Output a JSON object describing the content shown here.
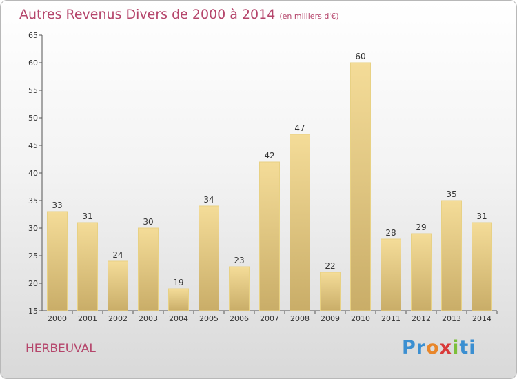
{
  "header": {
    "title": "Autres Revenus Divers de 2000 à 2014",
    "unit": "(en milliers d'€)"
  },
  "footer": {
    "commune": "HERBEUVAL",
    "logo": [
      "Pr",
      "o",
      "x",
      "i",
      "ti"
    ]
  },
  "colors": {
    "accent": "#b5456b",
    "bar_top": "#f4dc98",
    "bar_bottom": "#c9ad68",
    "bar_stroke": "#e8d184"
  },
  "chart_data": {
    "type": "bar",
    "title": "Autres Revenus Divers de 2000 à 2014",
    "subtitle": "(en milliers d'€)",
    "categories": [
      "2000",
      "2001",
      "2002",
      "2003",
      "2004",
      "2005",
      "2006",
      "2007",
      "2008",
      "2009",
      "2010",
      "2011",
      "2012",
      "2013",
      "2014"
    ],
    "values": [
      33,
      31,
      24,
      30,
      19,
      34,
      23,
      42,
      47,
      22,
      60,
      28,
      29,
      35,
      31
    ],
    "ylim": [
      15,
      65
    ],
    "yticks": [
      15,
      20,
      25,
      30,
      35,
      40,
      45,
      50,
      55,
      60,
      65
    ],
    "grid": false,
    "data_labels": true
  }
}
